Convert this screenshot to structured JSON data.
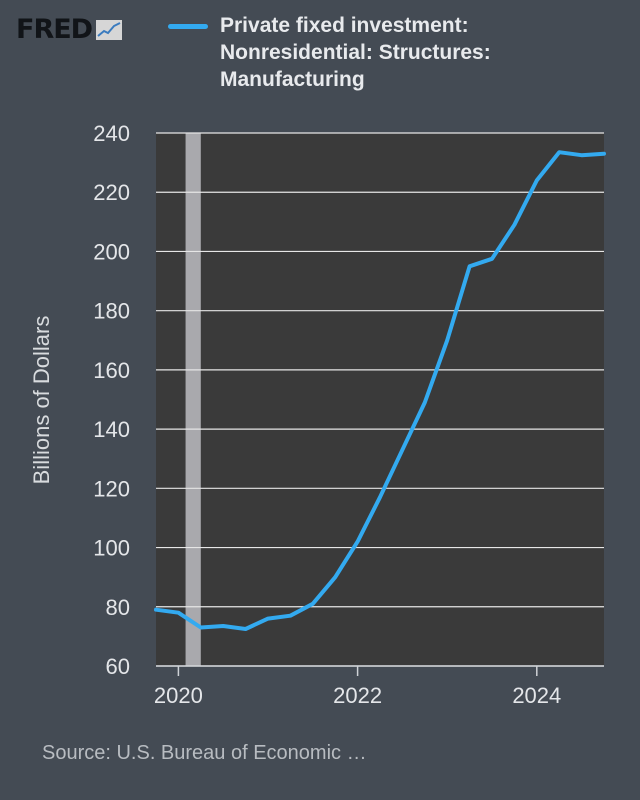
{
  "branding": {
    "logo_text": "FRED",
    "logo_mark": "chart-trend-icon"
  },
  "colors": {
    "background": "#444b54",
    "plot_background": "#3a3a3a",
    "series": "#33aaf0",
    "grid": "#e6e6e6",
    "recession": "#a9a9ad"
  },
  "chart_data": {
    "type": "line",
    "title": "",
    "legend_position": "top",
    "ylabel": "Billions of Dollars",
    "xlabel": "",
    "ylim": [
      60,
      240
    ],
    "xlim": [
      2019.75,
      2024.75
    ],
    "yticks": [
      "60",
      "80",
      "100",
      "120",
      "140",
      "160",
      "180",
      "200",
      "220",
      "240"
    ],
    "xticks": [
      "2020",
      "2022",
      "2024"
    ],
    "grid": true,
    "recession_shading": [
      [
        2020.08,
        2020.25
      ]
    ],
    "series": [
      {
        "name": "Private fixed investment: Nonresidential: Structures: Manufacturing",
        "x": [
          "2019-Q4",
          "2020-Q1",
          "2020-Q2",
          "2020-Q3",
          "2020-Q4",
          "2021-Q1",
          "2021-Q2",
          "2021-Q3",
          "2021-Q4",
          "2022-Q1",
          "2022-Q2",
          "2022-Q3",
          "2022-Q4",
          "2023-Q1",
          "2023-Q2",
          "2023-Q3",
          "2023-Q4",
          "2024-Q1",
          "2024-Q2",
          "2024-Q3",
          "2024-Q4"
        ],
        "values": [
          79,
          78,
          73,
          73.5,
          72.5,
          76,
          77,
          81,
          90,
          102,
          117,
          133,
          149,
          170,
          195,
          197.5,
          209,
          224,
          233.5,
          232.5,
          233
        ]
      }
    ]
  },
  "source": "Source: U.S. Bureau of Economic …"
}
